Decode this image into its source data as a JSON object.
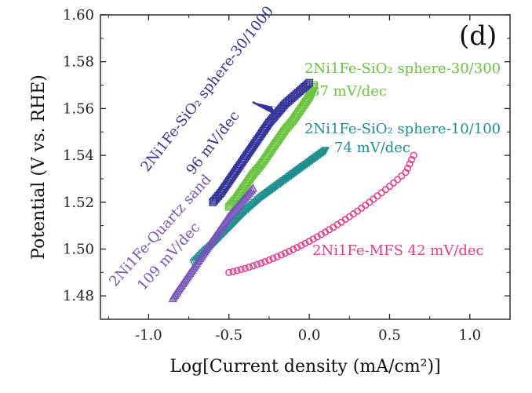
{
  "chart_data": {
    "type": "scatter",
    "panel_label": "(d)",
    "xlabel": "Log[Current density (mA/cm²)]",
    "ylabel": "Potential (V vs. RHE)",
    "xlim": [
      -1.3,
      1.25
    ],
    "ylim": [
      1.47,
      1.6
    ],
    "xticks": [
      -1.0,
      -0.5,
      0.0,
      0.5,
      1.0
    ],
    "xtick_labels": [
      "-1.0",
      "-0.5",
      "0.0",
      "0.5",
      "1.0"
    ],
    "yticks": [
      1.48,
      1.5,
      1.52,
      1.54,
      1.56,
      1.58,
      1.6
    ],
    "ytick_labels": [
      "1.48",
      "1.50",
      "1.52",
      "1.54",
      "1.56",
      "1.58",
      "1.60"
    ],
    "series": [
      {
        "name": "2Ni1Fe-MFS",
        "label": "2Ni1Fe-MFS 42 mV/dec",
        "color": "#e83c8c",
        "marker": "circle",
        "x": [
          -0.5,
          -0.45,
          -0.4,
          -0.35,
          -0.3,
          -0.25,
          -0.2,
          -0.15,
          -0.1,
          -0.05,
          0.0,
          0.05,
          0.1,
          0.15,
          0.2,
          0.25,
          0.3,
          0.35,
          0.4,
          0.45,
          0.5,
          0.55,
          0.6,
          0.65
        ],
        "y": [
          1.49,
          1.4908,
          1.4917,
          1.4928,
          1.494,
          1.4953,
          1.4967,
          1.4982,
          1.4998,
          1.5015,
          1.5033,
          1.5052,
          1.5072,
          1.5093,
          1.5115,
          1.5138,
          1.5162,
          1.5187,
          1.5213,
          1.524,
          1.5268,
          1.5297,
          1.5327,
          1.54
        ]
      },
      {
        "name": "2Ni1Fe-SiO2 sphere-10/100",
        "label_line1": "2Ni1Fe-SiO₂ sphere-10/100",
        "label_line2": "74 mV/dec",
        "color": "#1f8f8f",
        "marker": "triangle-down",
        "x": [
          -0.72,
          -0.65,
          -0.6,
          -0.55,
          -0.5,
          -0.45,
          -0.4,
          -0.35,
          -0.3,
          -0.25,
          -0.2,
          -0.15,
          -0.1,
          -0.05,
          0.0,
          0.05,
          0.1
        ],
        "y": [
          1.494,
          1.499,
          1.502,
          1.5055,
          1.509,
          1.5125,
          1.516,
          1.519,
          1.522,
          1.5245,
          1.527,
          1.5295,
          1.532,
          1.5345,
          1.537,
          1.5395,
          1.542
        ]
      },
      {
        "name": "2Ni1Fe-SiO2 sphere-30/300",
        "label_line1": "2Ni1Fe-SiO₂ sphere-30/300",
        "label_line2": "87 mV/dec",
        "color": "#6ac43f",
        "marker": "square",
        "x": [
          -0.5,
          -0.45,
          -0.4,
          -0.35,
          -0.3,
          -0.25,
          -0.2,
          -0.15,
          -0.1,
          -0.05,
          0.0,
          0.03
        ],
        "y": [
          1.518,
          1.522,
          1.527,
          1.532,
          1.536,
          1.541,
          1.546,
          1.551,
          1.555,
          1.56,
          1.565,
          1.57
        ]
      },
      {
        "name": "2Ni1Fe-SiO2 sphere-30/1000",
        "label_line1": "2Ni1Fe-SiO₂ sphere-30/1000",
        "label_line2": "96 mV/dec",
        "color": "#33339a",
        "marker": "square",
        "x": [
          -0.6,
          -0.55,
          -0.5,
          -0.45,
          -0.4,
          -0.35,
          -0.3,
          -0.25,
          -0.2,
          -0.15,
          -0.1,
          -0.05,
          0.0
        ],
        "y": [
          1.52,
          1.524,
          1.529,
          1.534,
          1.539,
          1.544,
          1.549,
          1.554,
          1.558,
          1.562,
          1.565,
          1.568,
          1.571
        ]
      },
      {
        "name": "2Ni1Fe-Quartz sand",
        "label_line1": "2Ni1Fe-Quartz sand",
        "label_line2": "109 mV/dec",
        "color": "#7755bb",
        "marker": "triangle-up",
        "x": [
          -0.85,
          -0.8,
          -0.75,
          -0.7,
          -0.65,
          -0.6,
          -0.55,
          -0.5,
          -0.45,
          -0.4,
          -0.35
        ],
        "y": [
          1.479,
          1.484,
          1.489,
          1.494,
          1.499,
          1.504,
          1.509,
          1.514,
          1.518,
          1.522,
          1.526
        ]
      }
    ]
  }
}
